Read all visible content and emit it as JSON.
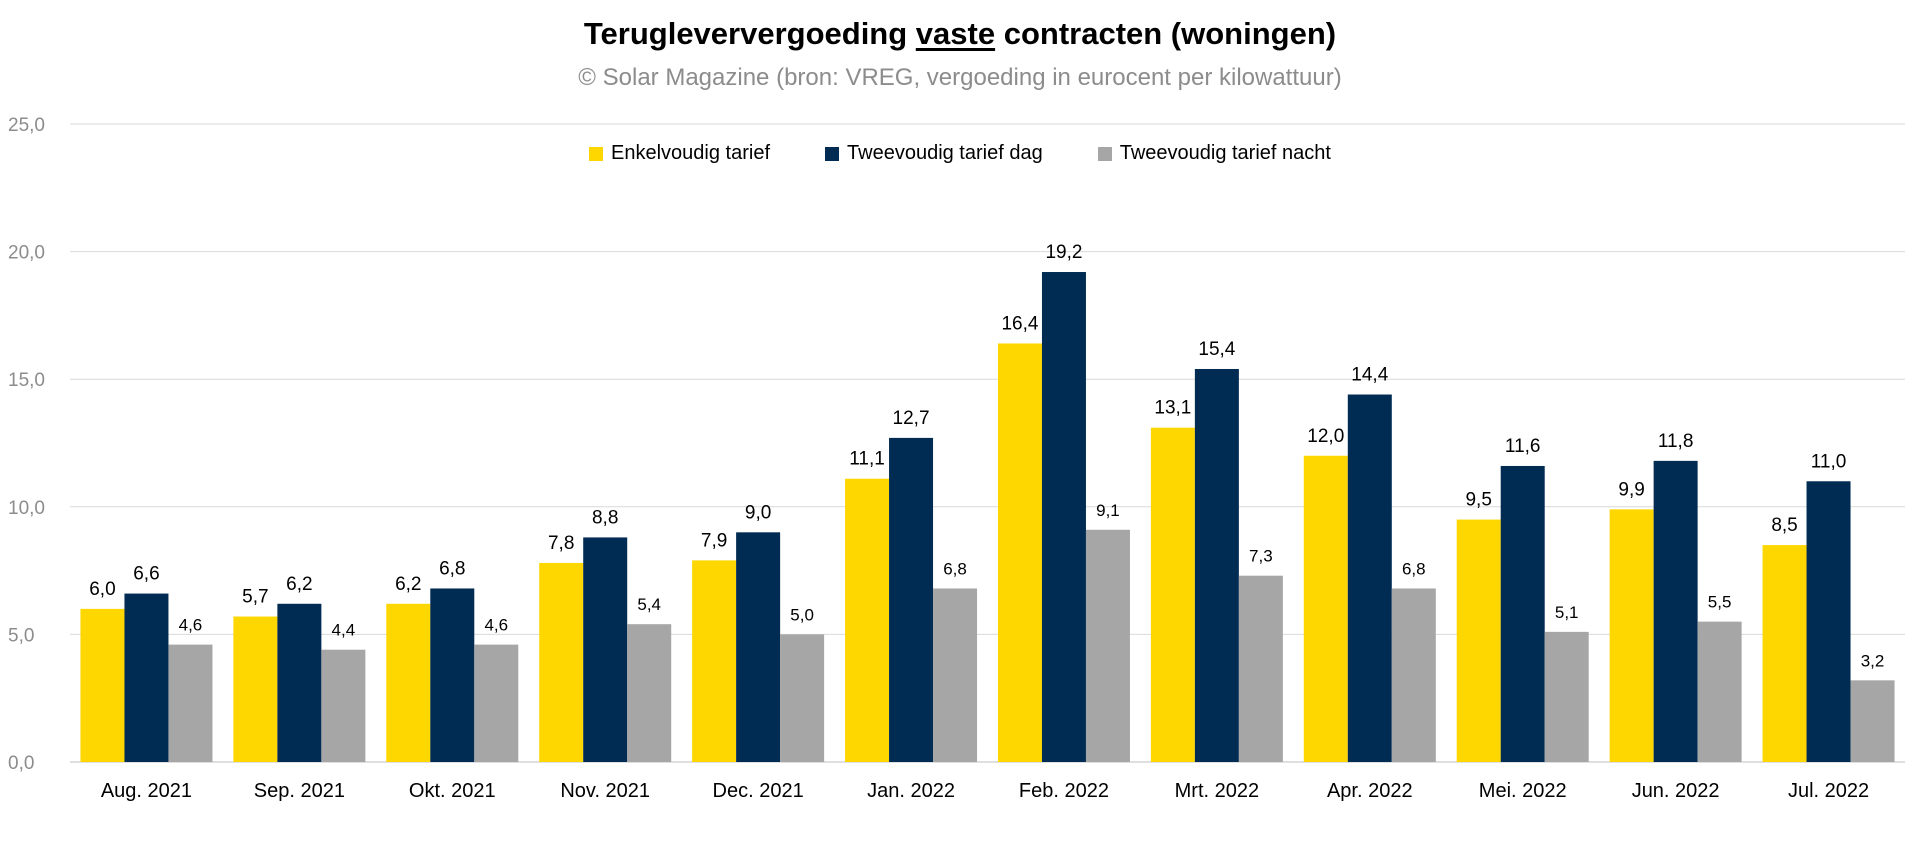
{
  "title_parts": {
    "before": "Terugleververgoeding ",
    "underlined": "vaste",
    "after": " contracten (woningen)"
  },
  "subtitle": "© Solar Magazine (bron: VREG, vergoeding in eurocent per kilowattuur)",
  "chart_data": {
    "type": "bar",
    "title": "Terugleververgoeding vaste contracten (woningen)",
    "subtitle": "© Solar Magazine (bron: VREG, vergoeding in eurocent per kilowattuur)",
    "xlabel": "",
    "ylabel": "",
    "ylim": [
      0,
      25
    ],
    "yticks": [
      0,
      5,
      10,
      15,
      20,
      25
    ],
    "ytick_labels": [
      "0,0",
      "5,0",
      "10,0",
      "15,0",
      "20,0",
      "25,0"
    ],
    "grid": true,
    "legend_position": "top",
    "categories": [
      "Aug. 2021",
      "Sep. 2021",
      "Okt. 2021",
      "Nov. 2021",
      "Dec. 2021",
      "Jan. 2022",
      "Feb. 2022",
      "Mrt. 2022",
      "Apr. 2022",
      "Mei. 2022",
      "Jun. 2022",
      "Jul. 2022"
    ],
    "series": [
      {
        "name": "Enkelvoudig tarief",
        "color": "#ffd700",
        "values": [
          6.0,
          5.7,
          6.2,
          7.8,
          7.9,
          11.1,
          16.4,
          13.1,
          12.0,
          9.5,
          9.9,
          8.5
        ],
        "labels": [
          "6,0",
          "5,7",
          "6,2",
          "7,8",
          "7,9",
          "11,1",
          "16,4",
          "13,1",
          "12,0",
          "9,5",
          "9,9",
          "8,5"
        ]
      },
      {
        "name": "Tweevoudig tarief dag",
        "color": "#002b52",
        "values": [
          6.6,
          6.2,
          6.8,
          8.8,
          9.0,
          12.7,
          19.2,
          15.4,
          14.4,
          11.6,
          11.8,
          11.0
        ],
        "labels": [
          "6,6",
          "6,2",
          "6,8",
          "8,8",
          "9,0",
          "12,7",
          "19,2",
          "15,4",
          "14,4",
          "11,6",
          "11,8",
          "11,0"
        ]
      },
      {
        "name": "Tweevoudig tarief nacht",
        "color": "#a6a6a6",
        "values": [
          4.6,
          4.4,
          4.6,
          5.4,
          5.0,
          6.8,
          9.1,
          7.3,
          6.8,
          5.1,
          5.5,
          3.2
        ],
        "labels": [
          "4,6",
          "4,4",
          "4,6",
          "5,4",
          "5,0",
          "6,8",
          "9,1",
          "7,3",
          "6,8",
          "5,1",
          "5,5",
          "3,2"
        ]
      }
    ]
  }
}
